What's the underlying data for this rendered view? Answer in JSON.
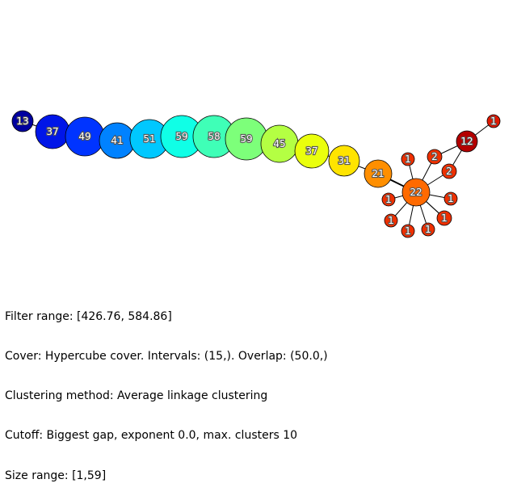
{
  "graph": {
    "nodes": [
      {
        "id": "n0",
        "label": "13",
        "color": "#00009f"
      },
      {
        "id": "n1",
        "label": "37",
        "color": "#0016e8"
      },
      {
        "id": "n2",
        "label": "49",
        "color": "#0034ff"
      },
      {
        "id": "n3",
        "label": "41",
        "color": "#0082ff"
      },
      {
        "id": "n4",
        "label": "51",
        "color": "#00c8ff"
      },
      {
        "id": "n5",
        "label": "59",
        "color": "#10ffe6"
      },
      {
        "id": "n6",
        "label": "58",
        "color": "#3fffb7"
      },
      {
        "id": "n7",
        "label": "59",
        "color": "#7dff7a"
      },
      {
        "id": "n8",
        "label": "45",
        "color": "#b4ff43"
      },
      {
        "id": "n9",
        "label": "37",
        "color": "#eaff0d"
      },
      {
        "id": "n10",
        "label": "31",
        "color": "#ffe400"
      },
      {
        "id": "n11",
        "label": "21",
        "color": "#ff8f00"
      },
      {
        "id": "n12",
        "label": "22",
        "color": "#ff6a00"
      },
      {
        "id": "n13",
        "label": "12",
        "color": "#b30000"
      },
      {
        "id": "n14",
        "label": "1",
        "color": "#df1900"
      },
      {
        "id": "n15",
        "label": "2",
        "color": "#ee3000"
      },
      {
        "id": "n16",
        "label": "2",
        "color": "#ee3000"
      },
      {
        "id": "n17",
        "label": "1",
        "color": "#ee3000"
      },
      {
        "id": "n18",
        "label": "1",
        "color": "#ee3000"
      },
      {
        "id": "n19",
        "label": "1",
        "color": "#ee3000"
      },
      {
        "id": "n20",
        "label": "1",
        "color": "#ee3000"
      },
      {
        "id": "n21",
        "label": "2",
        "color": "#ee3000"
      },
      {
        "id": "n22",
        "label": "1",
        "color": "#ee3000"
      },
      {
        "id": "n23",
        "label": "1",
        "color": "#ee3000"
      },
      {
        "id": "n24",
        "label": "1",
        "color": "#ee3000"
      }
    ],
    "edges": [
      [
        "n0",
        "n1"
      ],
      [
        "n1",
        "n2"
      ],
      [
        "n2",
        "n3"
      ],
      [
        "n3",
        "n4"
      ],
      [
        "n4",
        "n5"
      ],
      [
        "n5",
        "n6"
      ],
      [
        "n6",
        "n7"
      ],
      [
        "n7",
        "n8"
      ],
      [
        "n8",
        "n9"
      ],
      [
        "n9",
        "n10"
      ],
      [
        "n10",
        "n11"
      ],
      [
        "n11",
        "n12"
      ],
      [
        "n13",
        "n14"
      ],
      [
        "n13",
        "n15"
      ],
      [
        "n13",
        "n16"
      ],
      [
        "n12",
        "n15"
      ],
      [
        "n12",
        "n16"
      ],
      [
        "n12",
        "n17"
      ],
      [
        "n12",
        "n18"
      ],
      [
        "n12",
        "n19"
      ],
      [
        "n12",
        "n20"
      ],
      [
        "n12",
        "n21"
      ],
      [
        "n12",
        "n22"
      ],
      [
        "n12",
        "n23"
      ],
      [
        "n12",
        "n24"
      ]
    ]
  },
  "info": {
    "filter_range": "Filter range: [426.76, 584.86]",
    "cover": "Cover: Hypercube cover. Intervals: (15,). Overlap: (50.0,)",
    "clustering": "Clustering method: Average linkage clustering",
    "cutoff": "Cutoff: Biggest gap, exponent 0.0, max. clusters 10",
    "size_range": "Size range: [1,59]"
  }
}
